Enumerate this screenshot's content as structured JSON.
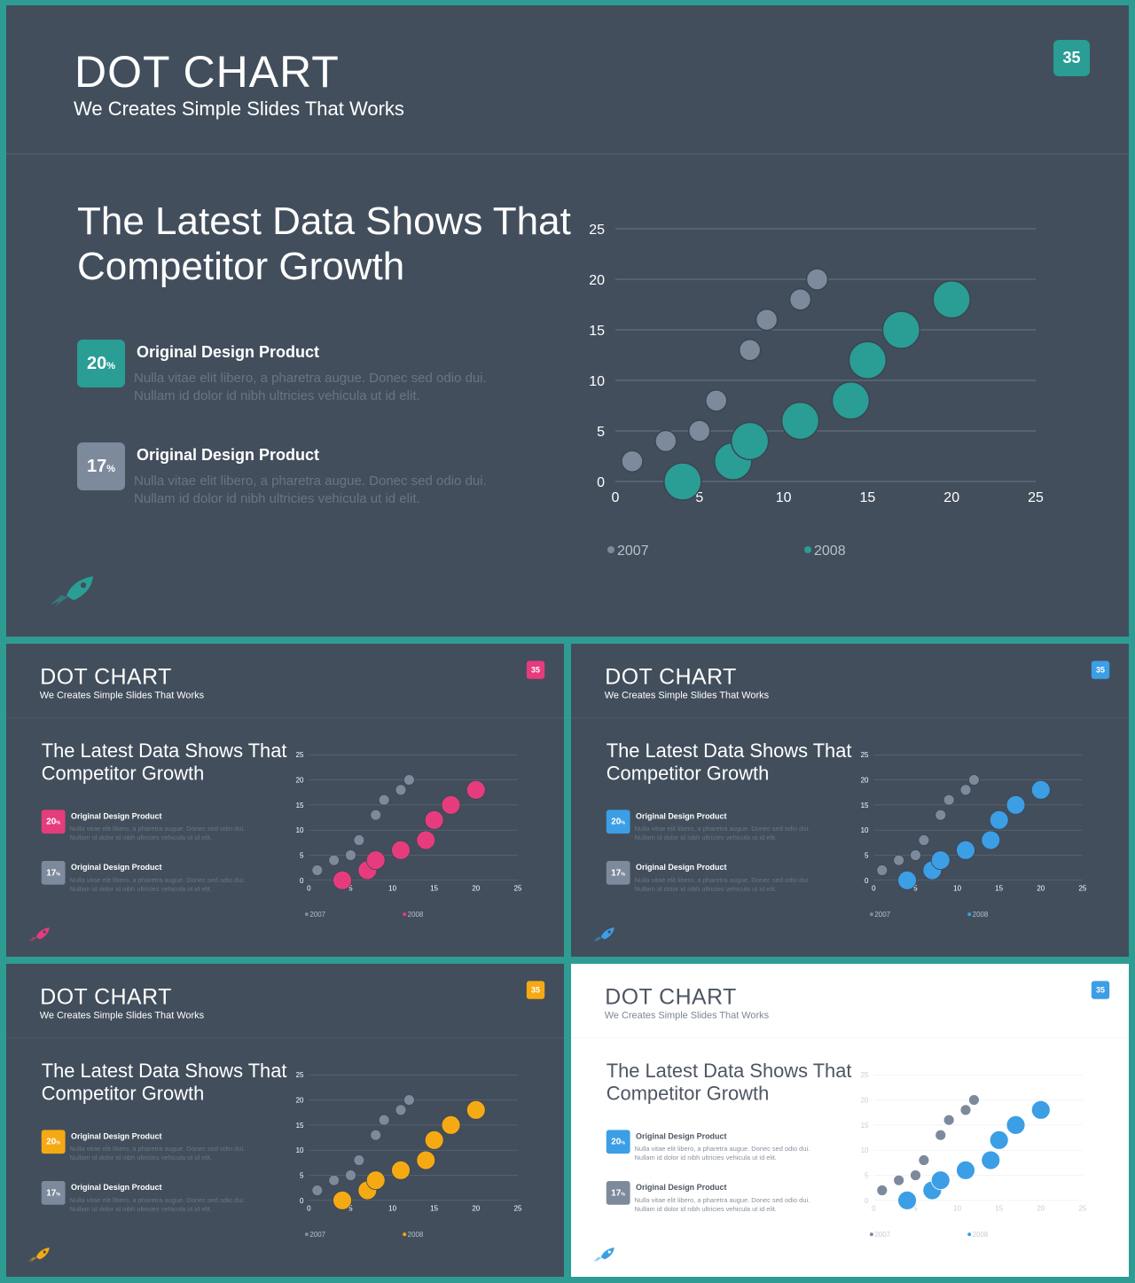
{
  "slide": {
    "title": "DOT CHART",
    "subtitle": "We Creates Simple Slides That Works",
    "page_number": "35",
    "heading_line1": "The Latest Data Shows That",
    "heading_line2": "Competitor Growth",
    "stats": [
      {
        "value": "20",
        "unit": "%",
        "title": "Original Design Product",
        "body_line1": "Nulla vitae elit libero, a pharetra augue. Donec sed odio dui.",
        "body_line2": "Nullam id dolor id nibh ultricies vehicula ut id elit."
      },
      {
        "value": "17",
        "unit": "%",
        "title": "Original Design Product",
        "body_line1": "Nulla vitae elit libero, a pharetra augue. Donec sed odio dui.",
        "body_line2": "Nullam id dolor id nibh ultricies vehicula ut id elit."
      }
    ]
  },
  "icons": {
    "rocket": "rocket-icon"
  },
  "variants": [
    {
      "id": "main",
      "theme": "dark",
      "accent": "#2a9d94"
    },
    {
      "id": "pink",
      "theme": "dark",
      "accent": "#e63c7d"
    },
    {
      "id": "blue",
      "theme": "dark",
      "accent": "#3c9ee5"
    },
    {
      "id": "yellow",
      "theme": "dark",
      "accent": "#f5aa13"
    },
    {
      "id": "white",
      "theme": "light",
      "accent": "#3c9ee5"
    }
  ],
  "colors": {
    "dark_background": "#424e5c",
    "frame": "#2e9c93",
    "series_2007": "#7d8a9c",
    "stat2_box": "#7d8a9c",
    "light_background": "#ffffff"
  },
  "chart_data": {
    "type": "scatter",
    "title": "",
    "xlabel": "",
    "ylabel": "",
    "xlim": [
      0,
      25
    ],
    "ylim": [
      0,
      25
    ],
    "xticks": [
      0,
      5,
      10,
      15,
      20,
      25
    ],
    "yticks": [
      0,
      5,
      10,
      15,
      20,
      25
    ],
    "grid": "horizontal",
    "legend": "bottom-left",
    "series": [
      {
        "name": "2007",
        "style": "small",
        "points": [
          [
            1,
            2
          ],
          [
            3,
            4
          ],
          [
            5,
            5
          ],
          [
            6,
            8
          ],
          [
            8,
            13
          ],
          [
            9,
            16
          ],
          [
            11,
            18
          ],
          [
            12,
            20
          ]
        ]
      },
      {
        "name": "2008",
        "style": "large",
        "points": [
          [
            4,
            0
          ],
          [
            7,
            2
          ],
          [
            8,
            4
          ],
          [
            11,
            6
          ],
          [
            14,
            8
          ],
          [
            15,
            12
          ],
          [
            17,
            15
          ],
          [
            20,
            18
          ]
        ]
      }
    ]
  }
}
